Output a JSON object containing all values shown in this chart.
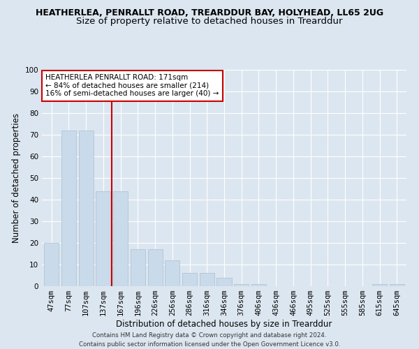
{
  "title": "HEATHERLEA, PENRALLT ROAD, TREARDDUR BAY, HOLYHEAD, LL65 2UG",
  "subtitle": "Size of property relative to detached houses in Trearddur",
  "xlabel": "Distribution of detached houses by size in Trearddur",
  "ylabel": "Number of detached properties",
  "categories": [
    "47sqm",
    "77sqm",
    "107sqm",
    "137sqm",
    "167sqm",
    "196sqm",
    "226sqm",
    "256sqm",
    "286sqm",
    "316sqm",
    "346sqm",
    "376sqm",
    "406sqm",
    "436sqm",
    "466sqm",
    "495sqm",
    "525sqm",
    "555sqm",
    "585sqm",
    "615sqm",
    "645sqm"
  ],
  "values": [
    20,
    72,
    72,
    44,
    44,
    17,
    17,
    12,
    6,
    6,
    4,
    1,
    1,
    0,
    0,
    0,
    0,
    0,
    0,
    1,
    1
  ],
  "bar_color": "#c9daea",
  "bar_edge_color": "#aabfcf",
  "vline_x": 3.5,
  "vline_color": "#cc0000",
  "annotation_title": "HEATHERLEA PENRALLT ROAD: 171sqm",
  "annotation_line1": "← 84% of detached houses are smaller (214)",
  "annotation_line2": "16% of semi-detached houses are larger (40) →",
  "annotation_box_color": "#cc0000",
  "ylim": [
    0,
    100
  ],
  "yticks": [
    0,
    10,
    20,
    30,
    40,
    50,
    60,
    70,
    80,
    90,
    100
  ],
  "fig_bg": "#dce6f0",
  "plot_bg": "#dce6f0",
  "footer_line1": "Contains HM Land Registry data © Crown copyright and database right 2024.",
  "footer_line2": "Contains public sector information licensed under the Open Government Licence v3.0.",
  "title_fontsize": 9,
  "subtitle_fontsize": 9.5,
  "axis_label_fontsize": 8.5,
  "tick_fontsize": 7.5,
  "footer_fontsize": 6.2
}
